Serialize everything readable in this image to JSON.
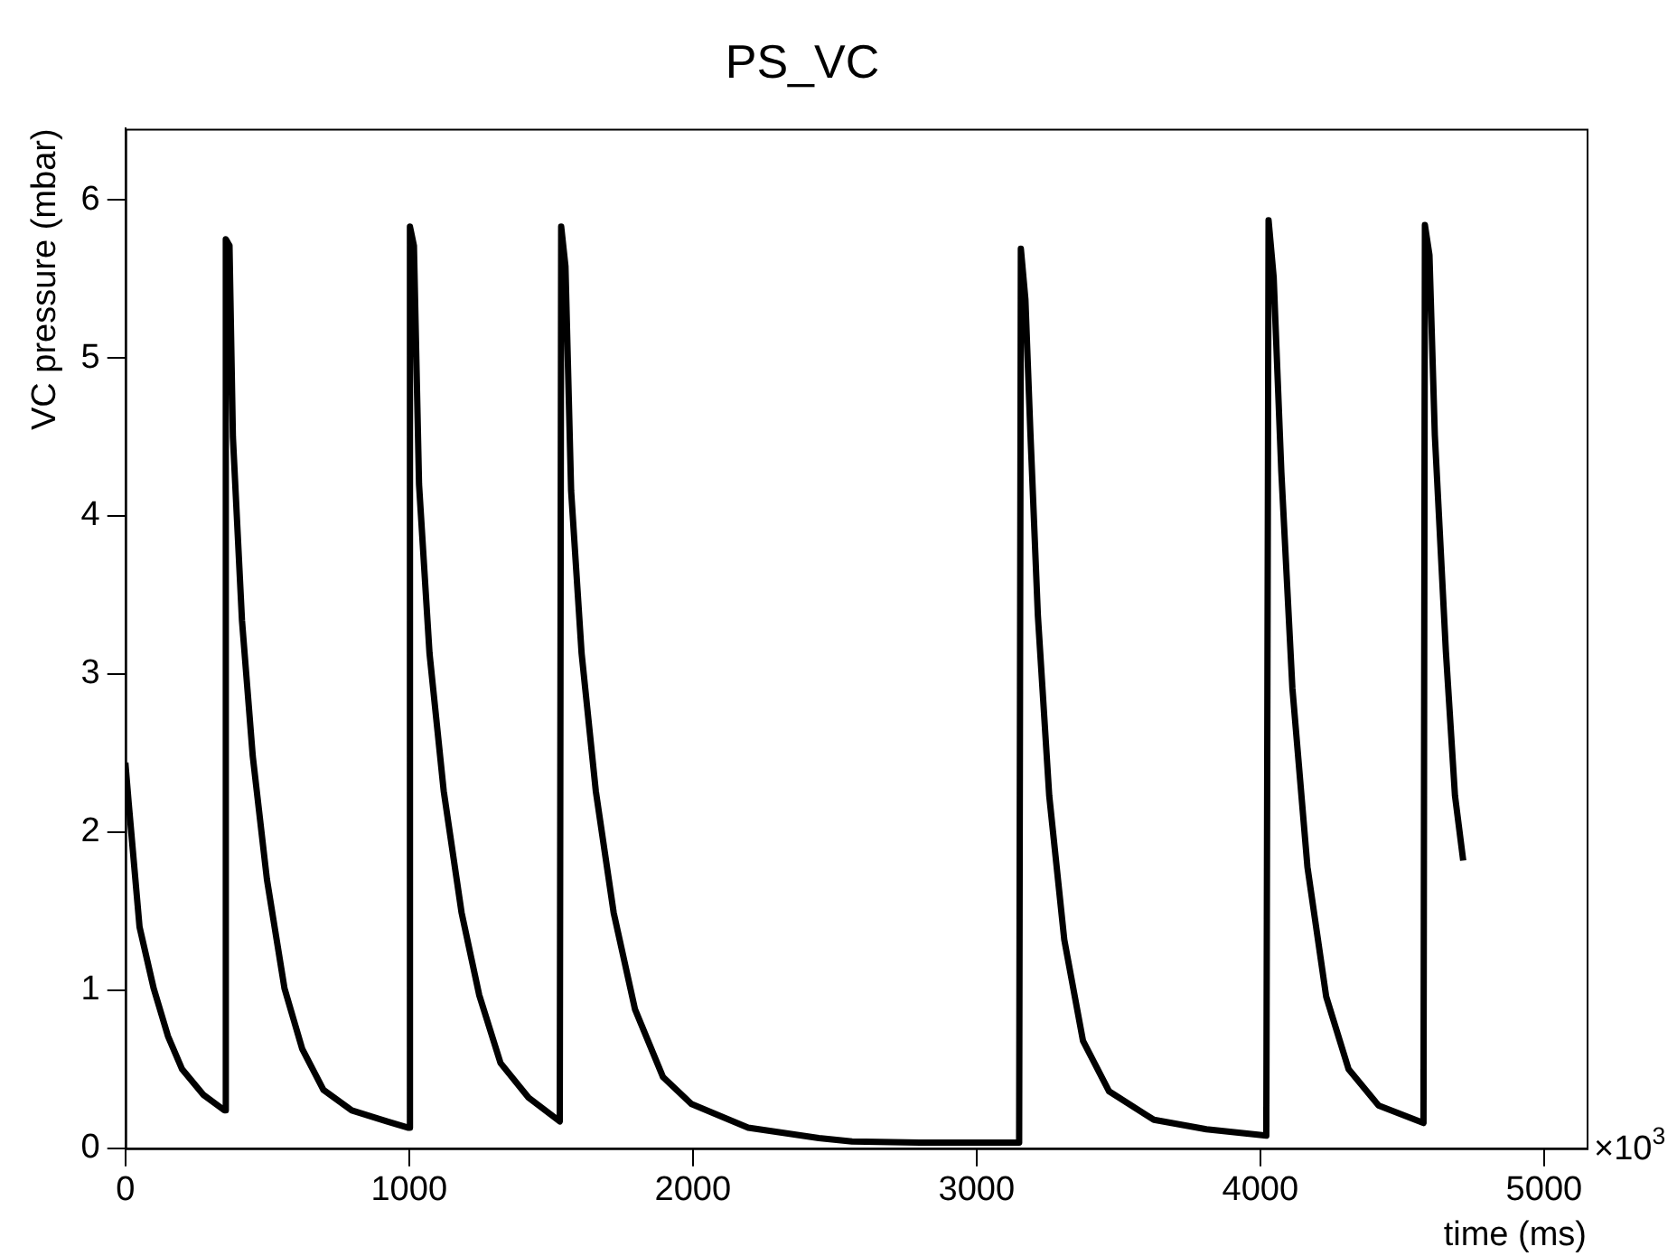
{
  "chart_data": {
    "type": "line",
    "title": "PS_VC",
    "xlabel": "time (ms)",
    "ylabel": "VC pressure (mbar)",
    "annotations": [
      "×10$^{3}$"
    ],
    "xlim": [
      0,
      5150
    ],
    "xticks": [
      0,
      1000,
      2000,
      3000,
      4000,
      5000
    ],
    "ylim": [
      0,
      6.45
    ],
    "yticks": [
      0,
      1,
      2,
      3,
      4,
      5,
      6
    ],
    "grid": false,
    "legend": false,
    "marker": "none",
    "line_style": "solid",
    "series": [
      {
        "color": "#000000",
        "x": [
          0,
          12,
          50,
          100,
          150,
          200,
          274,
          349,
          354,
          367,
          379,
          411,
          449,
          499,
          561,
          623,
          698,
          798,
          923,
          998,
          1003,
          1017,
          1035,
          1072,
          1122,
          1185,
          1247,
          1322,
          1421,
          1531,
          1536,
          1551,
          1571,
          1608,
          1658,
          1721,
          1796,
          1895,
          1995,
          2195,
          2444,
          2561,
          2807,
          3150,
          3156,
          3172,
          3190,
          3216,
          3256,
          3309,
          3375,
          3467,
          3625,
          3810,
          4021,
          4029,
          4047,
          4074,
          4113,
          4166,
          4232,
          4311,
          4417,
          4575,
          4580,
          4596,
          4615,
          4654,
          4686,
          4715
        ],
        "values": [
          2.44,
          2.18,
          1.4,
          1.01,
          0.71,
          0.5,
          0.34,
          0.24,
          5.75,
          5.71,
          4.5,
          3.34,
          2.48,
          1.7,
          1.01,
          0.63,
          0.37,
          0.24,
          0.17,
          0.13,
          5.83,
          5.71,
          4.2,
          3.13,
          2.26,
          1.49,
          0.97,
          0.54,
          0.32,
          0.17,
          5.83,
          5.58,
          4.16,
          3.13,
          2.26,
          1.49,
          0.88,
          0.45,
          0.28,
          0.13,
          0.065,
          0.043,
          0.036,
          0.036,
          5.69,
          5.37,
          4.51,
          3.37,
          2.23,
          1.32,
          0.68,
          0.36,
          0.18,
          0.12,
          0.08,
          5.87,
          5.51,
          4.28,
          2.91,
          1.78,
          0.96,
          0.5,
          0.27,
          0.16,
          5.84,
          5.65,
          4.51,
          3.14,
          2.23,
          1.82
        ]
      }
    ]
  }
}
